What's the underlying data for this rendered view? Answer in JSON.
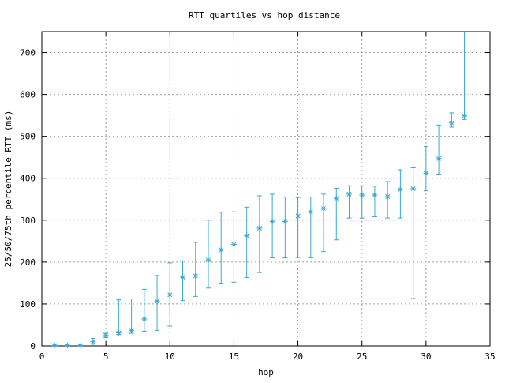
{
  "chart_data": {
    "type": "scatter",
    "title": "RTT quartiles vs hop distance",
    "xlabel": "hop",
    "ylabel": "25/50/75th percentile RTT (ms)",
    "xlim": [
      0,
      35
    ],
    "ylim": [
      0,
      750
    ],
    "xticks": [
      0,
      5,
      10,
      15,
      20,
      25,
      30,
      35
    ],
    "yticks": [
      0,
      100,
      200,
      300,
      400,
      500,
      600,
      700
    ],
    "grid": true,
    "series_color": "#3ca8d0",
    "points": [
      {
        "hop": 1,
        "p25": 0,
        "p50": 1,
        "p75": 2
      },
      {
        "hop": 2,
        "p25": 0,
        "p50": 1,
        "p75": 2
      },
      {
        "hop": 3,
        "p25": 0,
        "p50": 1,
        "p75": 2
      },
      {
        "hop": 4,
        "p25": 4,
        "p50": 10,
        "p75": 18
      },
      {
        "hop": 5,
        "p25": 20,
        "p50": 25,
        "p75": 30
      },
      {
        "hop": 6,
        "p25": 27,
        "p50": 31,
        "p75": 110
      },
      {
        "hop": 7,
        "p25": 30,
        "p50": 37,
        "p75": 112
      },
      {
        "hop": 8,
        "p25": 35,
        "p50": 64,
        "p75": 135
      },
      {
        "hop": 9,
        "p25": 37,
        "p50": 106,
        "p75": 168
      },
      {
        "hop": 10,
        "p25": 47,
        "p50": 122,
        "p75": 198
      },
      {
        "hop": 11,
        "p25": 108,
        "p50": 164,
        "p75": 203
      },
      {
        "hop": 12,
        "p25": 118,
        "p50": 167,
        "p75": 247
      },
      {
        "hop": 13,
        "p25": 138,
        "p50": 205,
        "p75": 300
      },
      {
        "hop": 14,
        "p25": 148,
        "p50": 229,
        "p75": 319
      },
      {
        "hop": 15,
        "p25": 152,
        "p50": 242,
        "p75": 320
      },
      {
        "hop": 16,
        "p25": 163,
        "p50": 263,
        "p75": 331
      },
      {
        "hop": 17,
        "p25": 175,
        "p50": 281,
        "p75": 358
      },
      {
        "hop": 18,
        "p25": 210,
        "p50": 297,
        "p75": 362
      },
      {
        "hop": 19,
        "p25": 210,
        "p50": 297,
        "p75": 355
      },
      {
        "hop": 20,
        "p25": 211,
        "p50": 310,
        "p75": 354
      },
      {
        "hop": 21,
        "p25": 210,
        "p50": 320,
        "p75": 355
      },
      {
        "hop": 22,
        "p25": 225,
        "p50": 328,
        "p75": 362
      },
      {
        "hop": 23,
        "p25": 253,
        "p50": 352,
        "p75": 376
      },
      {
        "hop": 24,
        "p25": 305,
        "p50": 362,
        "p75": 382
      },
      {
        "hop": 25,
        "p25": 305,
        "p50": 360,
        "p75": 382
      },
      {
        "hop": 26,
        "p25": 308,
        "p50": 360,
        "p75": 381
      },
      {
        "hop": 27,
        "p25": 305,
        "p50": 356,
        "p75": 392
      },
      {
        "hop": 28,
        "p25": 305,
        "p50": 373,
        "p75": 420
      },
      {
        "hop": 29,
        "p25": 113,
        "p50": 375,
        "p75": 425
      },
      {
        "hop": 30,
        "p25": 370,
        "p50": 412,
        "p75": 476
      },
      {
        "hop": 31,
        "p25": 410,
        "p50": 447,
        "p75": 527
      },
      {
        "hop": 32,
        "p25": 522,
        "p50": 532,
        "p75": 556
      },
      {
        "hop": 33,
        "p25": 540,
        "p50": 549,
        "p75": 750
      }
    ]
  }
}
